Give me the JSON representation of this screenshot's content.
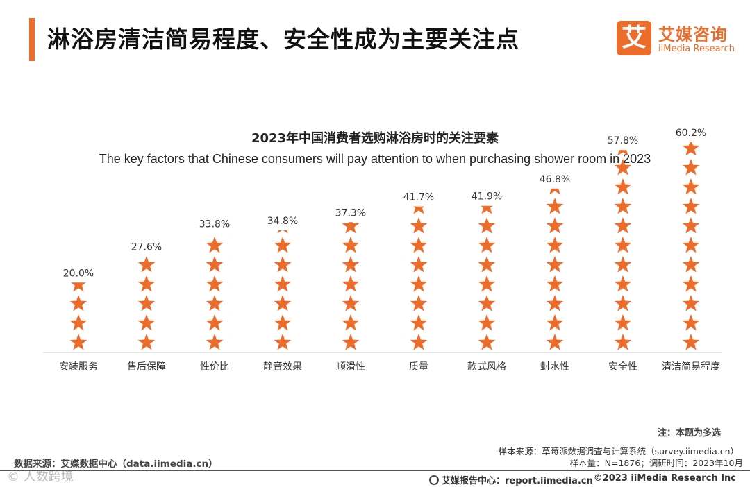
{
  "header": {
    "title": "淋浴房清洁简易程度、安全性成为主要关注点"
  },
  "logo": {
    "mark": "艾",
    "name_cn": "艾媒咨询",
    "name_en": "iiMedia Research"
  },
  "colors": {
    "accent": "#ec6c2b",
    "star": "#ec6c2b",
    "baseline": "#cccccc"
  },
  "chart_data": {
    "type": "bar",
    "title": "2023年中国消费者选购淋浴房时的关注要素",
    "subtitle": "The key factors that Chinese consumers will pay attention to when purchasing shower room in 2023",
    "categories": [
      "安装服务",
      "售后保障",
      "性价比",
      "静音效果",
      "顺滑性",
      "质量",
      "款式风格",
      "封水性",
      "安全性",
      "清洁简易程度"
    ],
    "values": [
      20.0,
      27.6,
      33.8,
      34.8,
      37.3,
      41.7,
      41.9,
      46.8,
      57.8,
      60.2
    ],
    "value_labels": [
      "20.0%",
      "27.6%",
      "33.8%",
      "34.8%",
      "37.3%",
      "41.7%",
      "41.9%",
      "46.8%",
      "57.8%",
      "60.2%"
    ],
    "unit": "%",
    "mark": "stacked-star-pictogram",
    "xlabel": "",
    "ylabel": "",
    "grid": false
  },
  "notes": {
    "multi_select": "注：本题为多选",
    "sample_source": "样本来源：草莓派数据调查与计算系统（survey.iimedia.cn）",
    "sample_size": "样本量：N=1876；调研时间：2023年10月",
    "data_source": "数据来源：艾媒数据中心（data.iimedia.cn）"
  },
  "watermark": "© 人数跨境",
  "footer": {
    "report_center": "艾媒报告中心：report.iimedia.cn",
    "copyright": "©2023  iiMedia Research  Inc"
  }
}
